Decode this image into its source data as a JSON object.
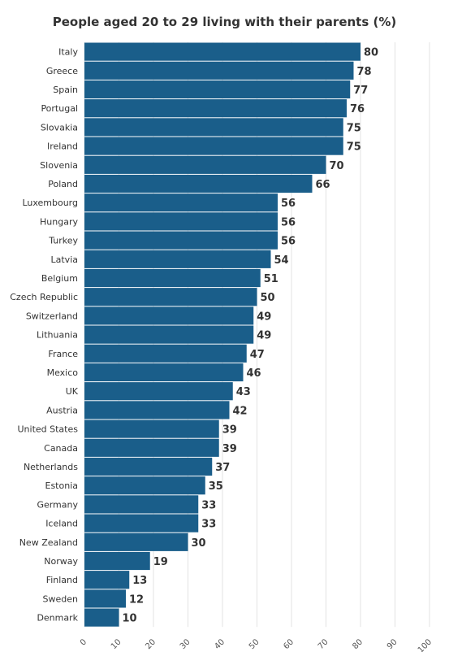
{
  "chart_data": {
    "type": "bar",
    "orientation": "horizontal",
    "title": "People aged 20 to 29 living with their parents (%)",
    "categories": [
      "Italy",
      "Greece",
      "Spain",
      "Portugal",
      "Slovakia",
      "Ireland",
      "Slovenia",
      "Poland",
      "Luxembourg",
      "Hungary",
      "Turkey",
      "Latvia",
      "Belgium",
      "Czech Republic",
      "Switzerland",
      "Lithuania",
      "France",
      "Mexico",
      "UK",
      "Austria",
      "United States",
      "Canada",
      "Netherlands",
      "Estonia",
      "Germany",
      "Iceland",
      "New Zealand",
      "Norway",
      "Finland",
      "Sweden",
      "Denmark"
    ],
    "values": [
      80,
      78,
      77,
      76,
      75,
      75,
      70,
      66,
      56,
      56,
      56,
      54,
      51,
      50,
      49,
      49,
      47,
      46,
      43,
      42,
      39,
      39,
      37,
      35,
      33,
      33,
      30,
      19,
      13,
      12,
      10
    ],
    "xlim": [
      0,
      100
    ],
    "xticks": [
      0,
      10,
      20,
      30,
      40,
      50,
      60,
      70,
      80,
      90,
      100
    ],
    "grid": true,
    "bar_color": "#1a5e8a"
  }
}
